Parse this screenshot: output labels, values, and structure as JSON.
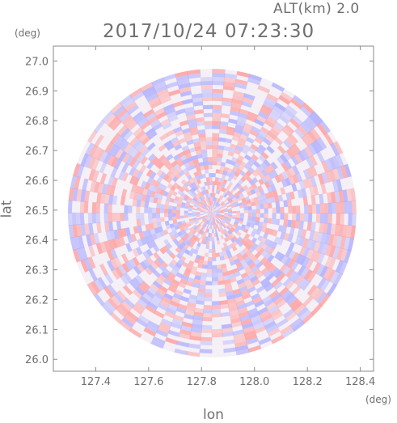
{
  "header": {
    "altitude": "ALT(km) 2.0",
    "timestamp": "2017/10/24 07:23:30"
  },
  "colors": {
    "axis": "#8a8a8a",
    "positive": "#ff9a9a",
    "negative": "#a9a9ff",
    "neutral": "#f4f0f6"
  },
  "chart_data": {
    "type": "heatmap",
    "title": "2017/10/24 07:23:30",
    "subtitle": "ALT(km) 2.0",
    "xlabel": "lon",
    "ylabel": "lat",
    "x_unit": "(deg)",
    "y_unit": "(deg)",
    "xlim": [
      127.24,
      128.45
    ],
    "ylim": [
      25.96,
      27.05
    ],
    "x_ticks": [
      127.4,
      127.6,
      127.8,
      128.0,
      128.2,
      128.4
    ],
    "x_tick_labels": [
      "127.4",
      "127.6",
      "127.8",
      "128.0",
      "128.2",
      "128.4"
    ],
    "y_ticks": [
      26.0,
      26.1,
      26.2,
      26.3,
      26.4,
      26.5,
      26.6,
      26.7,
      26.8,
      26.9,
      27.0
    ],
    "y_tick_labels": [
      "26.0",
      "26.1",
      "26.2",
      "26.3",
      "26.4",
      "26.5",
      "26.6",
      "26.7",
      "26.8",
      "26.9",
      "27.0"
    ],
    "scan_center": {
      "lon": 127.84,
      "lat": 26.49
    },
    "scan_radius_deg": 0.545,
    "grid": false,
    "pattern": "polar radar scan of alternating positive (red) and negative (blue) values; exact values not labeled"
  }
}
